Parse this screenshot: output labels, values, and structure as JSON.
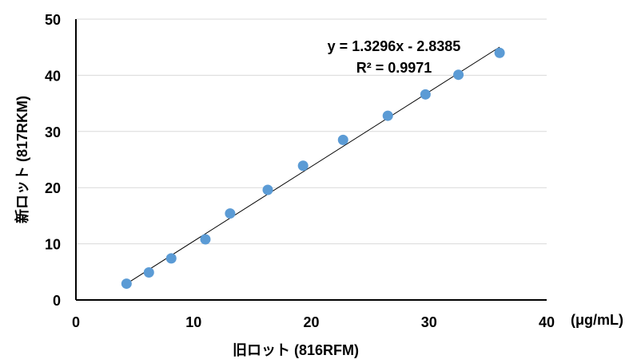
{
  "chart_data": {
    "type": "scatter",
    "title": "",
    "xlabel": "旧ロット (816RFM)",
    "ylabel": "新ロット (817RKM)",
    "x_unit": "(μg/mL)",
    "xlim": [
      0,
      40
    ],
    "ylim": [
      0,
      50
    ],
    "x_ticks": [
      "0",
      "10",
      "20",
      "30",
      "40"
    ],
    "y_ticks": [
      "0",
      "10",
      "20",
      "30",
      "40",
      "50"
    ],
    "grid": {
      "horizontal": true,
      "vertical": false
    },
    "series": [
      {
        "x": [
          4.3,
          6.2,
          8.1,
          11.0,
          13.1,
          16.3,
          19.3,
          22.7,
          26.5,
          29.7,
          32.5,
          36.0
        ],
        "y": [
          2.9,
          4.9,
          7.4,
          10.8,
          15.4,
          19.6,
          23.9,
          28.5,
          32.8,
          36.6,
          40.1,
          44.0
        ],
        "color": "#5b9bd5"
      }
    ],
    "trendline": {
      "type": "linear",
      "slope": 1.3296,
      "intercept": -2.8385,
      "x_range": [
        4.3,
        36.0
      ],
      "color": "#000000",
      "equation": "y = 1.3296x - 2.8385",
      "r_squared": "R² = 0.9971"
    },
    "colors": {
      "gridline": "#d9d9d9",
      "axis": "#000000"
    }
  }
}
